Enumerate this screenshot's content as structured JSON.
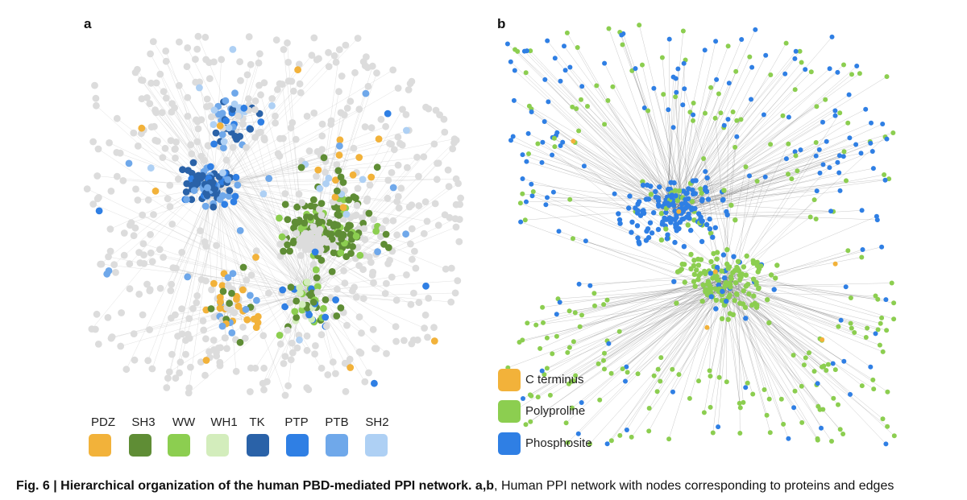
{
  "panel_a": {
    "label": "a",
    "legend": [
      {
        "name": "PDZ",
        "color": "#f2b23a"
      },
      {
        "name": "SH3",
        "color": "#5f8d35"
      },
      {
        "name": "WW",
        "color": "#8cce50"
      },
      {
        "name": "WH1",
        "color": "#d3edbc"
      },
      {
        "name": "TK",
        "color": "#2a62a8"
      },
      {
        "name": "PTP",
        "color": "#2f7fe4"
      },
      {
        "name": "PTB",
        "color": "#6fa8ea"
      },
      {
        "name": "SH2",
        "color": "#aed0f4"
      }
    ]
  },
  "panel_b": {
    "label": "b",
    "legend": [
      {
        "name": "C terminus",
        "color": "#f2b23a"
      },
      {
        "name": "Polyproline",
        "color": "#8cce50"
      },
      {
        "name": "Phosphosite",
        "color": "#2f7fe4"
      }
    ]
  },
  "caption": {
    "bold": "Fig. 6 | Hierarchical organization of the human PBD-mediated PPI network.",
    "bold_refs": "a,b",
    "text": ", Human PPI network with nodes corresponding to proteins and edges"
  },
  "colors": {
    "node_grey": "#dcdcdc",
    "edge": "#555555"
  }
}
